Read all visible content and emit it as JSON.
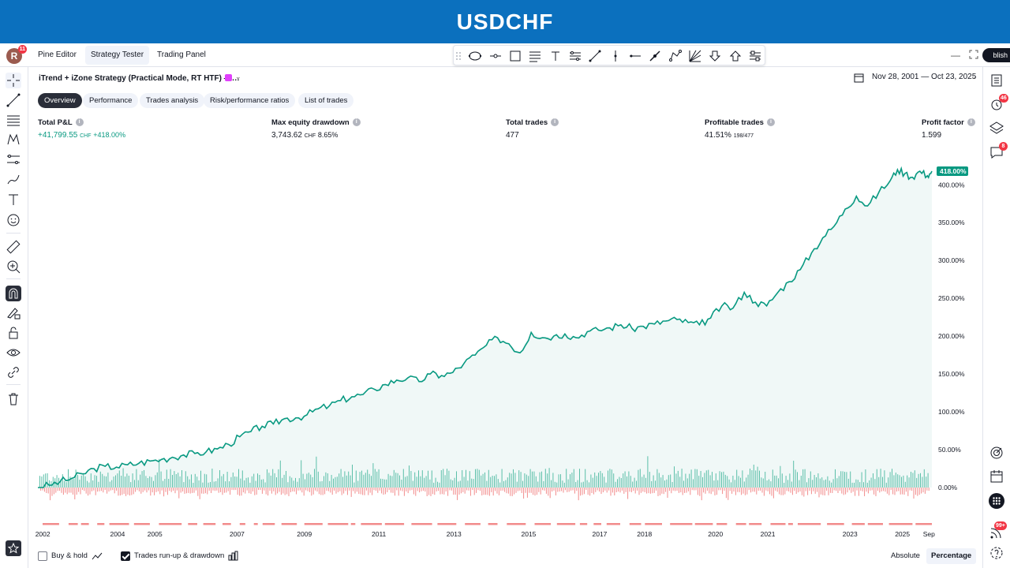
{
  "banner": {
    "title": "USDCHF"
  },
  "topbar": {
    "avatar_letter": "R",
    "avatar_badge": "11",
    "tabs": [
      {
        "label": "Pine Editor",
        "active": false
      },
      {
        "label": "Strategy Tester",
        "active": true
      },
      {
        "label": "Trading Panel",
        "active": false
      }
    ],
    "publish_label": "blish"
  },
  "drawing_toolbar": {
    "icons": [
      "drag-handle-icon",
      "ellipse-icon",
      "horizontal-ray-icon",
      "rectangle-icon",
      "fib-retracement-icon",
      "text-icon",
      "parallel-channel-icon",
      "trend-line-icon",
      "vertical-line-icon",
      "horizontal-line-tool-icon",
      "info-line-icon",
      "path-icon",
      "gann-fan-icon",
      "arrow-down-icon",
      "arrow-up-icon",
      "settings-icon"
    ]
  },
  "left_toolbar": {
    "icons": [
      "crosshair-icon",
      "trend-line-icon",
      "fib-icon",
      "pattern-icon",
      "prediction-icon",
      "brush-icon",
      "text-icon",
      "emoji-icon",
      "ruler-icon",
      "zoom-in-icon",
      "magnet-icon",
      "lock-drawing-icon",
      "lock-icon",
      "eye-icon",
      "link-icon",
      "trash-icon",
      "star-icon"
    ]
  },
  "right_toolbar": {
    "icons": [
      "watchlist-icon",
      "alerts-icon",
      "layers-icon",
      "chat-icon",
      "target-icon",
      "calendar-icon",
      "apps-icon",
      "signal-icon",
      "help-icon"
    ],
    "badges": {
      "alerts": "46",
      "chat": "8",
      "signal": "99+"
    }
  },
  "strategy": {
    "name": "iTrend + iZone Strategy (Practical Mode, RT HTF) —…",
    "date_range": "Nov 28, 2001 — Oct 23, 2025"
  },
  "subtabs": [
    {
      "label": "Overview",
      "active": true
    },
    {
      "label": "Performance",
      "active": false
    },
    {
      "label": "Trades analysis",
      "active": false
    },
    {
      "label": "Risk/performance ratios",
      "active": false
    },
    {
      "label": "List of trades",
      "active": false
    }
  ],
  "metrics": {
    "total_pnl": {
      "label": "Total P&L",
      "value": "+41,799.55",
      "currency": "CHF",
      "pct": "+418.00%"
    },
    "max_dd": {
      "label": "Max equity drawdown",
      "value": "3,743.62",
      "currency": "CHF",
      "pct": "8.65%"
    },
    "total_trades": {
      "label": "Total trades",
      "value": "477"
    },
    "profitable": {
      "label": "Profitable trades",
      "value": "41.51%",
      "sub": "198/477"
    },
    "profit_factor": {
      "label": "Profit factor",
      "value": "1.599"
    }
  },
  "chart_data": {
    "type": "area",
    "colors": {
      "equity": "#089981",
      "area": "#e6f4f1",
      "runup": "#5bbfa8",
      "drawdown": "#f28b8b",
      "last_label_bg": "#089981"
    },
    "y_axis": {
      "ticks": [
        "0.00%",
        "50.00%",
        "100.00%",
        "150.00%",
        "200.00%",
        "250.00%",
        "300.00%",
        "350.00%",
        "400.00%"
      ],
      "tick_values": [
        0,
        50,
        100,
        150,
        200,
        250,
        300,
        350,
        400
      ],
      "ylim": [
        0,
        418
      ],
      "last_value_label": "418.00%"
    },
    "x_axis": {
      "ticks": [
        "2002",
        "2004",
        "2005",
        "2007",
        "2009",
        "2011",
        "2013",
        "2015",
        "2017",
        "2018",
        "2020",
        "2021",
        "2023",
        "2025",
        "Sep"
      ],
      "tick_values": [
        2002.0,
        2004.0,
        2005.0,
        2007.2,
        2009.0,
        2011.0,
        2013.0,
        2015.0,
        2016.9,
        2018.1,
        2020.0,
        2021.4,
        2023.6,
        2025.0,
        2025.75
      ],
      "xlim": [
        2001.9,
        2025.82
      ]
    },
    "equity_points": [
      [
        2001.9,
        0
      ],
      [
        2002.2,
        3
      ],
      [
        2002.5,
        8
      ],
      [
        2002.8,
        12
      ],
      [
        2003.1,
        18
      ],
      [
        2003.4,
        25
      ],
      [
        2003.7,
        28
      ],
      [
        2004.0,
        27
      ],
      [
        2004.3,
        30
      ],
      [
        2004.6,
        32
      ],
      [
        2004.9,
        35
      ],
      [
        2005.2,
        37
      ],
      [
        2005.5,
        40
      ],
      [
        2005.8,
        43
      ],
      [
        2006.1,
        45
      ],
      [
        2006.4,
        47
      ],
      [
        2006.7,
        51
      ],
      [
        2007.0,
        57
      ],
      [
        2007.3,
        67
      ],
      [
        2007.6,
        74
      ],
      [
        2007.9,
        81
      ],
      [
        2008.2,
        84
      ],
      [
        2008.5,
        91
      ],
      [
        2008.8,
        92
      ],
      [
        2009.1,
        96
      ],
      [
        2009.4,
        104
      ],
      [
        2009.7,
        108
      ],
      [
        2010.0,
        115
      ],
      [
        2010.3,
        120
      ],
      [
        2010.6,
        123
      ],
      [
        2010.9,
        130
      ],
      [
        2011.2,
        136
      ],
      [
        2011.5,
        142
      ],
      [
        2011.8,
        145
      ],
      [
        2012.1,
        140
      ],
      [
        2012.4,
        150
      ],
      [
        2012.7,
        148
      ],
      [
        2013.0,
        152
      ],
      [
        2013.3,
        164
      ],
      [
        2013.6,
        175
      ],
      [
        2013.9,
        188
      ],
      [
        2014.2,
        198
      ],
      [
        2014.5,
        190
      ],
      [
        2014.8,
        178
      ],
      [
        2015.1,
        205
      ],
      [
        2015.4,
        198
      ],
      [
        2015.7,
        200
      ],
      [
        2016.0,
        203
      ],
      [
        2016.3,
        198
      ],
      [
        2016.6,
        206
      ],
      [
        2016.9,
        208
      ],
      [
        2017.2,
        211
      ],
      [
        2017.5,
        215
      ],
      [
        2017.8,
        210
      ],
      [
        2018.1,
        213
      ],
      [
        2018.4,
        216
      ],
      [
        2018.7,
        220
      ],
      [
        2019.0,
        222
      ],
      [
        2019.3,
        218
      ],
      [
        2019.6,
        215
      ],
      [
        2019.9,
        224
      ],
      [
        2020.2,
        240
      ],
      [
        2020.5,
        237
      ],
      [
        2020.8,
        258
      ],
      [
        2021.1,
        245
      ],
      [
        2021.4,
        240
      ],
      [
        2021.7,
        258
      ],
      [
        2022.0,
        272
      ],
      [
        2022.3,
        288
      ],
      [
        2022.6,
        310
      ],
      [
        2022.9,
        330
      ],
      [
        2023.2,
        345
      ],
      [
        2023.5,
        368
      ],
      [
        2023.8,
        385
      ],
      [
        2024.1,
        372
      ],
      [
        2024.4,
        390
      ],
      [
        2024.7,
        405
      ],
      [
        2024.9,
        420
      ],
      [
        2025.1,
        415
      ],
      [
        2025.3,
        410
      ],
      [
        2025.5,
        418
      ],
      [
        2025.7,
        412
      ],
      [
        2025.82,
        418
      ]
    ],
    "runup_drawdown_note": "Trades run-up & drawdown"
  },
  "bottom": {
    "buy_hold_label": "Buy & hold",
    "buy_hold_checked": false,
    "runup_label": "Trades run-up & drawdown",
    "runup_checked": true,
    "absolute_label": "Absolute",
    "percentage_label": "Percentage",
    "active_mode": "Percentage"
  }
}
